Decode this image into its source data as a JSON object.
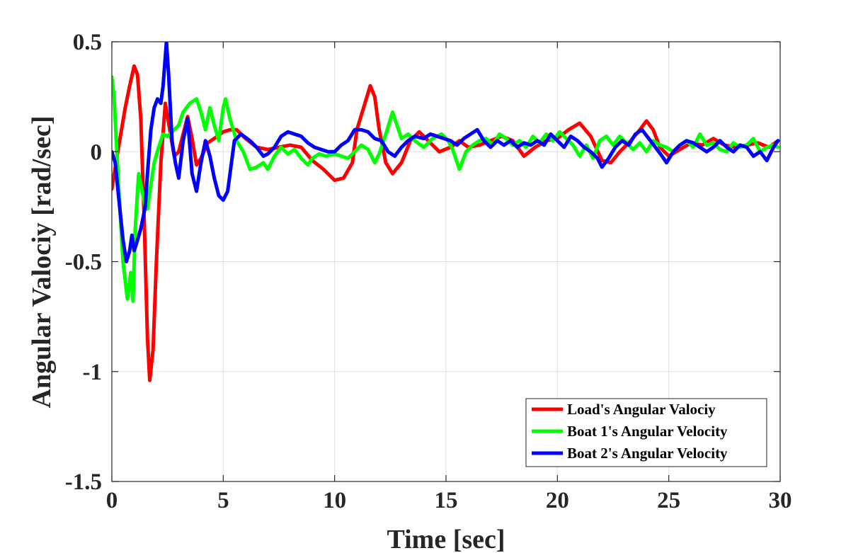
{
  "chart_data": {
    "type": "line",
    "title": "",
    "xlabel": "Time [sec]",
    "ylabel": "Angular Valociy [rad/sec]",
    "xlim": [
      0,
      30
    ],
    "ylim": [
      -1.5,
      0.5
    ],
    "xticks": [
      0,
      5,
      10,
      15,
      20,
      25,
      30
    ],
    "yticks": [
      -1.5,
      -1,
      -0.5,
      0,
      0.5
    ],
    "xtick_labels": [
      "0",
      "5",
      "10",
      "15",
      "20",
      "25",
      "30"
    ],
    "ytick_labels": [
      "-1.5",
      "-1",
      "-0.5",
      "0",
      "0.5"
    ],
    "grid": true,
    "legend_position": "bottom-right",
    "series": [
      {
        "name": "Load's Angular Valociy",
        "color": "#ff0000",
        "points": [
          [
            0,
            -0.17
          ],
          [
            0.3,
            0.02
          ],
          [
            0.6,
            0.2
          ],
          [
            0.8,
            0.3
          ],
          [
            1.0,
            0.39
          ],
          [
            1.15,
            0.35
          ],
          [
            1.3,
            0.15
          ],
          [
            1.45,
            -0.3
          ],
          [
            1.6,
            -0.85
          ],
          [
            1.7,
            -1.04
          ],
          [
            1.85,
            -0.9
          ],
          [
            2.0,
            -0.5
          ],
          [
            2.2,
            -0.05
          ],
          [
            2.4,
            0.22
          ],
          [
            2.6,
            0.1
          ],
          [
            2.8,
            -0.02
          ],
          [
            3.0,
            0.0
          ],
          [
            3.2,
            0.08
          ],
          [
            3.4,
            0.16
          ],
          [
            3.6,
            0.06
          ],
          [
            3.8,
            -0.06
          ],
          [
            4.0,
            -0.03
          ],
          [
            4.3,
            0.04
          ],
          [
            4.6,
            0.06
          ],
          [
            5.0,
            0.09
          ],
          [
            5.3,
            0.1
          ],
          [
            5.6,
            0.1
          ],
          [
            6.0,
            0.06
          ],
          [
            6.5,
            0.02
          ],
          [
            7.0,
            0.01
          ],
          [
            7.5,
            0.02
          ],
          [
            8.0,
            0.03
          ],
          [
            8.5,
            0.02
          ],
          [
            9.0,
            -0.04
          ],
          [
            9.5,
            -0.08
          ],
          [
            10.0,
            -0.13
          ],
          [
            10.4,
            -0.12
          ],
          [
            10.8,
            -0.05
          ],
          [
            11.0,
            0.1
          ],
          [
            11.3,
            0.2
          ],
          [
            11.6,
            0.3
          ],
          [
            11.8,
            0.25
          ],
          [
            12.0,
            0.1
          ],
          [
            12.3,
            -0.05
          ],
          [
            12.6,
            -0.1
          ],
          [
            13.0,
            -0.05
          ],
          [
            13.4,
            0.05
          ],
          [
            13.8,
            0.09
          ],
          [
            14.2,
            0.05
          ],
          [
            14.7,
            0.0
          ],
          [
            15.2,
            0.02
          ],
          [
            15.6,
            0.05
          ],
          [
            16.0,
            0.02
          ],
          [
            16.5,
            0.03
          ],
          [
            17.0,
            0.05
          ],
          [
            17.5,
            0.07
          ],
          [
            18.0,
            0.05
          ],
          [
            18.5,
            -0.02
          ],
          [
            19.0,
            0.02
          ],
          [
            19.5,
            0.05
          ],
          [
            20.0,
            0.06
          ],
          [
            20.5,
            0.1
          ],
          [
            21.0,
            0.13
          ],
          [
            21.5,
            0.07
          ],
          [
            22.0,
            -0.04
          ],
          [
            22.4,
            -0.05
          ],
          [
            22.8,
            0.0
          ],
          [
            23.3,
            0.05
          ],
          [
            23.7,
            0.1
          ],
          [
            24.0,
            0.14
          ],
          [
            24.3,
            0.1
          ],
          [
            24.6,
            0.02
          ],
          [
            25.0,
            -0.02
          ],
          [
            25.5,
            0.01
          ],
          [
            26.0,
            0.04
          ],
          [
            26.5,
            0.03
          ],
          [
            27.0,
            0.06
          ],
          [
            27.5,
            0.03
          ],
          [
            28.0,
            0.02
          ],
          [
            28.5,
            0.03
          ],
          [
            29.0,
            0.04
          ],
          [
            29.5,
            0.02
          ],
          [
            29.9,
            0.05
          ]
        ]
      },
      {
        "name": "Boat 1's Angular Velocity",
        "color": "#00ff00",
        "points": [
          [
            0,
            0.34
          ],
          [
            0.1,
            0.25
          ],
          [
            0.3,
            -0.15
          ],
          [
            0.5,
            -0.5
          ],
          [
            0.7,
            -0.67
          ],
          [
            0.85,
            -0.55
          ],
          [
            0.95,
            -0.68
          ],
          [
            1.05,
            -0.35
          ],
          [
            1.2,
            -0.1
          ],
          [
            1.4,
            -0.2
          ],
          [
            1.5,
            -0.25
          ],
          [
            1.6,
            -0.26
          ],
          [
            1.75,
            -0.15
          ],
          [
            1.9,
            -0.05
          ],
          [
            2.1,
            0.02
          ],
          [
            2.3,
            0.08
          ],
          [
            2.5,
            0.07
          ],
          [
            2.7,
            0.09
          ],
          [
            3.0,
            0.12
          ],
          [
            3.2,
            0.18
          ],
          [
            3.5,
            0.22
          ],
          [
            3.8,
            0.24
          ],
          [
            4.0,
            0.18
          ],
          [
            4.2,
            0.1
          ],
          [
            4.4,
            0.2
          ],
          [
            4.6,
            0.12
          ],
          [
            4.8,
            0.05
          ],
          [
            5.0,
            0.2
          ],
          [
            5.1,
            0.24
          ],
          [
            5.3,
            0.15
          ],
          [
            5.6,
            0.05
          ],
          [
            5.9,
            0.0
          ],
          [
            6.2,
            -0.08
          ],
          [
            6.5,
            -0.07
          ],
          [
            6.8,
            -0.05
          ],
          [
            7.0,
            -0.08
          ],
          [
            7.3,
            -0.02
          ],
          [
            7.6,
            0.02
          ],
          [
            7.9,
            -0.01
          ],
          [
            8.2,
            0.01
          ],
          [
            8.5,
            -0.03
          ],
          [
            8.8,
            -0.06
          ],
          [
            9.0,
            -0.03
          ],
          [
            9.3,
            -0.01
          ],
          [
            9.6,
            -0.02
          ],
          [
            10.0,
            -0.01
          ],
          [
            10.3,
            -0.02
          ],
          [
            10.6,
            -0.03
          ],
          [
            10.9,
            0.0
          ],
          [
            11.2,
            0.03
          ],
          [
            11.5,
            0.01
          ],
          [
            11.8,
            -0.05
          ],
          [
            12.0,
            -0.01
          ],
          [
            12.3,
            0.08
          ],
          [
            12.6,
            0.18
          ],
          [
            12.8,
            0.12
          ],
          [
            13.0,
            0.06
          ],
          [
            13.3,
            0.08
          ],
          [
            13.6,
            0.05
          ],
          [
            14.0,
            0.02
          ],
          [
            14.4,
            0.06
          ],
          [
            14.8,
            0.08
          ],
          [
            15.1,
            0.05
          ],
          [
            15.3,
            0.01
          ],
          [
            15.6,
            -0.08
          ],
          [
            15.9,
            0.0
          ],
          [
            16.2,
            0.03
          ],
          [
            16.5,
            0.05
          ],
          [
            16.8,
            0.06
          ],
          [
            17.1,
            0.03
          ],
          [
            17.4,
            0.08
          ],
          [
            17.7,
            0.06
          ],
          [
            18.0,
            0.03
          ],
          [
            18.3,
            0.05
          ],
          [
            18.6,
            0.02
          ],
          [
            18.9,
            0.07
          ],
          [
            19.2,
            0.04
          ],
          [
            19.5,
            0.08
          ],
          [
            19.8,
            0.05
          ],
          [
            20.1,
            0.09
          ],
          [
            20.4,
            0.06
          ],
          [
            20.7,
            0.03
          ],
          [
            21.0,
            -0.02
          ],
          [
            21.3,
            0.03
          ],
          [
            21.6,
            -0.03
          ],
          [
            21.9,
            0.05
          ],
          [
            22.2,
            0.07
          ],
          [
            22.5,
            0.03
          ],
          [
            22.8,
            0.07
          ],
          [
            23.1,
            0.04
          ],
          [
            23.4,
            0.01
          ],
          [
            23.7,
            0.04
          ],
          [
            24.0,
            0.0
          ],
          [
            24.3,
            0.05
          ],
          [
            24.6,
            0.03
          ],
          [
            24.9,
            0.02
          ],
          [
            25.2,
            0.0
          ],
          [
            25.5,
            0.03
          ],
          [
            25.8,
            0.05
          ],
          [
            26.1,
            0.02
          ],
          [
            26.4,
            0.08
          ],
          [
            26.7,
            0.03
          ],
          [
            27.0,
            0.04
          ],
          [
            27.3,
            0.01
          ],
          [
            27.6,
            0.0
          ],
          [
            27.9,
            0.04
          ],
          [
            28.2,
            0.02
          ],
          [
            28.5,
            0.03
          ],
          [
            28.8,
            0.06
          ],
          [
            29.1,
            0.0
          ],
          [
            29.4,
            0.02
          ],
          [
            29.7,
            0.03
          ],
          [
            29.9,
            0.02
          ]
        ]
      },
      {
        "name": "Boat 2's Angular Velocity",
        "color": "#0000ff",
        "points": [
          [
            0,
            0.0
          ],
          [
            0.15,
            -0.05
          ],
          [
            0.3,
            -0.2
          ],
          [
            0.5,
            -0.4
          ],
          [
            0.65,
            -0.5
          ],
          [
            0.8,
            -0.45
          ],
          [
            0.9,
            -0.38
          ],
          [
            1.0,
            -0.45
          ],
          [
            1.1,
            -0.42
          ],
          [
            1.3,
            -0.35
          ],
          [
            1.5,
            -0.25
          ],
          [
            1.6,
            -0.1
          ],
          [
            1.75,
            0.1
          ],
          [
            1.9,
            0.2
          ],
          [
            2.05,
            0.24
          ],
          [
            2.2,
            0.22
          ],
          [
            2.3,
            0.3
          ],
          [
            2.45,
            0.5
          ],
          [
            2.55,
            0.35
          ],
          [
            2.7,
            0.05
          ],
          [
            2.85,
            -0.05
          ],
          [
            3.0,
            -0.12
          ],
          [
            3.2,
            0.05
          ],
          [
            3.4,
            0.15
          ],
          [
            3.6,
            -0.1
          ],
          [
            3.8,
            -0.18
          ],
          [
            4.0,
            -0.05
          ],
          [
            4.2,
            0.05
          ],
          [
            4.4,
            -0.02
          ],
          [
            4.6,
            -0.12
          ],
          [
            4.8,
            -0.2
          ],
          [
            5.0,
            -0.22
          ],
          [
            5.2,
            -0.18
          ],
          [
            5.5,
            0.05
          ],
          [
            5.8,
            0.08
          ],
          [
            6.2,
            0.05
          ],
          [
            6.5,
            0.02
          ],
          [
            6.8,
            -0.02
          ],
          [
            7.0,
            -0.01
          ],
          [
            7.3,
            0.02
          ],
          [
            7.6,
            0.07
          ],
          [
            7.9,
            0.09
          ],
          [
            8.2,
            0.08
          ],
          [
            8.5,
            0.07
          ],
          [
            8.8,
            0.04
          ],
          [
            9.1,
            0.02
          ],
          [
            9.4,
            0.01
          ],
          [
            9.7,
            0.0
          ],
          [
            10.0,
            0.0
          ],
          [
            10.3,
            0.03
          ],
          [
            10.6,
            0.05
          ],
          [
            10.9,
            0.1
          ],
          [
            11.2,
            0.1
          ],
          [
            11.5,
            0.09
          ],
          [
            11.8,
            0.06
          ],
          [
            12.1,
            0.05
          ],
          [
            12.4,
            0.0
          ],
          [
            12.7,
            -0.02
          ],
          [
            13.0,
            0.02
          ],
          [
            13.3,
            0.05
          ],
          [
            13.6,
            0.07
          ],
          [
            14.0,
            0.06
          ],
          [
            14.3,
            0.08
          ],
          [
            14.6,
            0.07
          ],
          [
            14.9,
            0.06
          ],
          [
            15.2,
            0.05
          ],
          [
            15.5,
            0.03
          ],
          [
            15.8,
            0.06
          ],
          [
            16.1,
            0.08
          ],
          [
            16.4,
            0.1
          ],
          [
            16.7,
            0.05
          ],
          [
            17.0,
            0.02
          ],
          [
            17.3,
            0.05
          ],
          [
            17.6,
            0.03
          ],
          [
            17.9,
            0.05
          ],
          [
            18.2,
            0.02
          ],
          [
            18.5,
            0.04
          ],
          [
            18.8,
            0.03
          ],
          [
            19.1,
            0.05
          ],
          [
            19.4,
            0.03
          ],
          [
            19.7,
            0.08
          ],
          [
            20.0,
            0.05
          ],
          [
            20.3,
            0.02
          ],
          [
            20.6,
            0.07
          ],
          [
            20.9,
            0.05
          ],
          [
            21.2,
            0.02
          ],
          [
            21.5,
            0.0
          ],
          [
            21.8,
            -0.03
          ],
          [
            22.0,
            -0.07
          ],
          [
            22.3,
            -0.03
          ],
          [
            22.6,
            0.02
          ],
          [
            22.9,
            0.05
          ],
          [
            23.2,
            0.03
          ],
          [
            23.5,
            0.08
          ],
          [
            23.8,
            0.1
          ],
          [
            24.1,
            0.06
          ],
          [
            24.4,
            0.02
          ],
          [
            24.7,
            -0.02
          ],
          [
            24.9,
            -0.05
          ],
          [
            25.2,
            0.0
          ],
          [
            25.5,
            0.03
          ],
          [
            25.8,
            0.05
          ],
          [
            26.1,
            0.04
          ],
          [
            26.4,
            0.02
          ],
          [
            26.7,
            0.0
          ],
          [
            27.0,
            0.02
          ],
          [
            27.3,
            0.05
          ],
          [
            27.6,
            0.02
          ],
          [
            27.9,
            0.0
          ],
          [
            28.2,
            0.03
          ],
          [
            28.5,
            0.02
          ],
          [
            28.8,
            -0.02
          ],
          [
            29.1,
            0.0
          ],
          [
            29.4,
            -0.04
          ],
          [
            29.7,
            0.02
          ],
          [
            29.9,
            0.05
          ]
        ]
      }
    ]
  }
}
